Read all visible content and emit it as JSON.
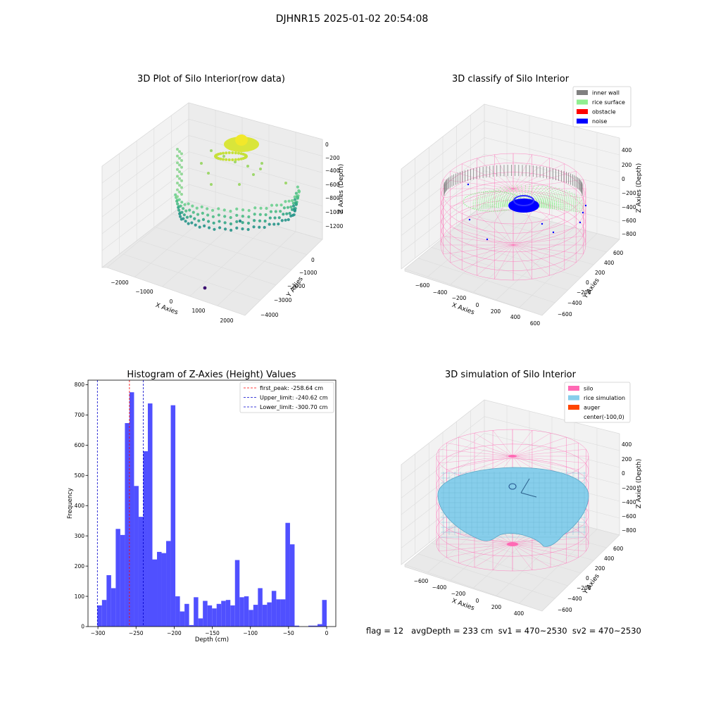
{
  "figure": {
    "suptitle": "DJHNR15 2025-01-02 20:54:08",
    "footer": "flag = 12   avgDepth = 233 cm  sv1 = 470~2530  sv2 = 470~2530"
  },
  "colors": {
    "bar": "#5050ff",
    "peak_line": "#ff0000",
    "limit_line": "#0000cc",
    "inner_wall": "#808080",
    "rice_surface": "#90ee90",
    "obstacle": "#ff0000",
    "noise": "#0000ff",
    "silo": "#ff69b4",
    "rice_simulation": "#87ceeb",
    "auger": "#ff4500"
  },
  "panels": {
    "raw": {
      "title": "3D Plot of Silo Interior(row data)",
      "xlabel": "X Axies",
      "ylabel": "Y Axies",
      "zlabel": "Z Axies (Depth)",
      "xticks": [
        "−2000",
        "−1000",
        "0",
        "1000",
        "2000"
      ],
      "yticks": [
        "0",
        "−1000",
        "−2000",
        "−3000",
        "−4000"
      ],
      "zticks": [
        "0",
        "−200",
        "−400",
        "−600",
        "−800",
        "−1000",
        "−1200"
      ]
    },
    "classify": {
      "title": "3D classify of Silo Interior",
      "xlabel": "X Axies",
      "ylabel": "Y Axies",
      "zlabel": "Z Axies (Depth)",
      "xticks": [
        "−600",
        "−400",
        "−200",
        "0",
        "200",
        "400",
        "600"
      ],
      "yticks": [
        "600",
        "400",
        "200",
        "0",
        "−200",
        "−400",
        "−600"
      ],
      "zticks": [
        "400",
        "200",
        "0",
        "−200",
        "−400",
        "−600",
        "−800"
      ],
      "legend": [
        "inner wall",
        "rice surface",
        "obstacle",
        "noise"
      ]
    },
    "simulation": {
      "title": "3D simulation of Silo Interior",
      "xlabel": "X Axies",
      "ylabel": "Y Axies",
      "zlabel": "Z Axies (Depth)",
      "xticks": [
        "−600",
        "−400",
        "−200",
        "0",
        "200",
        "400"
      ],
      "yticks": [
        "600",
        "400",
        "200",
        "0",
        "−200",
        "−400",
        "−600"
      ],
      "zticks": [
        "400",
        "200",
        "0",
        "−200",
        "−400",
        "−600",
        "−800"
      ],
      "legend": [
        "silo",
        "rice simulation",
        "auger",
        "center(-100,0)"
      ]
    }
  },
  "chart_data": {
    "type": "bar",
    "title": "Histogram of Z-Axies (Height) Values",
    "xlabel": "Depth (cm)",
    "ylabel": "Frequency",
    "xlim": [
      -313,
      12
    ],
    "ylim": [
      0,
      815
    ],
    "xticks": [
      -300,
      -250,
      -200,
      -150,
      -100,
      -50,
      0
    ],
    "yticks": [
      0,
      100,
      200,
      300,
      400,
      500,
      600,
      700,
      800
    ],
    "bin_start": -300.7,
    "bin_width": 6.015,
    "values": [
      70,
      88,
      170,
      127,
      323,
      303,
      673,
      775,
      465,
      363,
      580,
      738,
      222,
      247,
      243,
      283,
      732,
      100,
      50,
      75,
      5,
      97,
      27,
      85,
      70,
      60,
      75,
      85,
      88,
      70,
      220,
      97,
      100,
      55,
      72,
      127,
      72,
      80,
      118,
      90,
      90,
      343,
      272,
      3,
      0,
      0,
      3,
      3,
      8,
      88
    ],
    "vlines": [
      {
        "label": "first_peak: -258.64 cm",
        "x": -258.64,
        "color": "#ff0000"
      },
      {
        "label": "Upper_limit: -240.62 cm",
        "x": -240.62,
        "color": "#0000cc"
      },
      {
        "label": "Lower_limit: -300.70 cm",
        "x": -300.7,
        "color": "#0000cc"
      }
    ],
    "legend_position": "top-right",
    "grid": false
  }
}
